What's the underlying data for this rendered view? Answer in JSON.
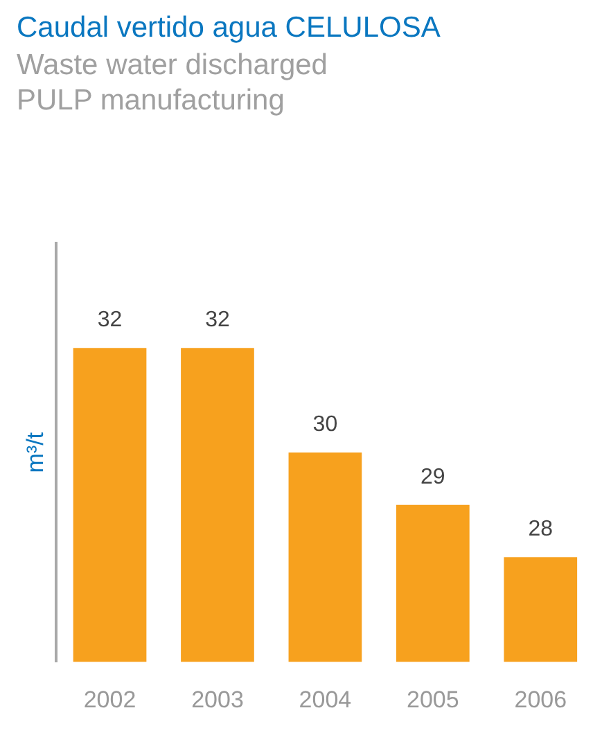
{
  "chart_data": {
    "type": "bar",
    "title": "Caudal vertido agua CELULOSA",
    "subtitle": "Waste water discharged\nPULP manufacturing",
    "ylabel": "m³/t",
    "categories": [
      "2002",
      "2003",
      "2004",
      "2005",
      "2006"
    ],
    "values": [
      32,
      32,
      30,
      29,
      28
    ],
    "color": "#f7a11e",
    "data_labels": true,
    "grid": false,
    "legend": false
  }
}
